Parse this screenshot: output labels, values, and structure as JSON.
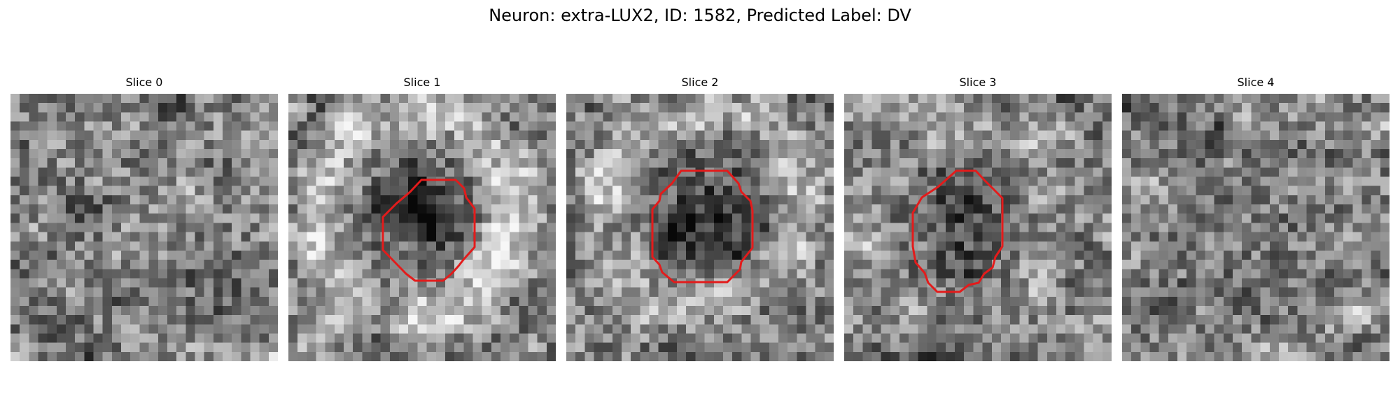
{
  "figure": {
    "title": "Neuron: extra-LUX2, ID: 1582, Predicted Label: DV"
  },
  "colors": {
    "roi_outline": "#e31b1b",
    "colormap": "grayscale"
  },
  "image_grid": {
    "pixels_per_side": 29
  },
  "slices": [
    {
      "title": "Slice 0",
      "has_roi": false
    },
    {
      "title": "Slice 1",
      "has_roi": true
    },
    {
      "title": "Slice 2",
      "has_roi": true
    },
    {
      "title": "Slice 3",
      "has_roi": true
    },
    {
      "title": "Slice 4",
      "has_roi": false
    }
  ]
}
